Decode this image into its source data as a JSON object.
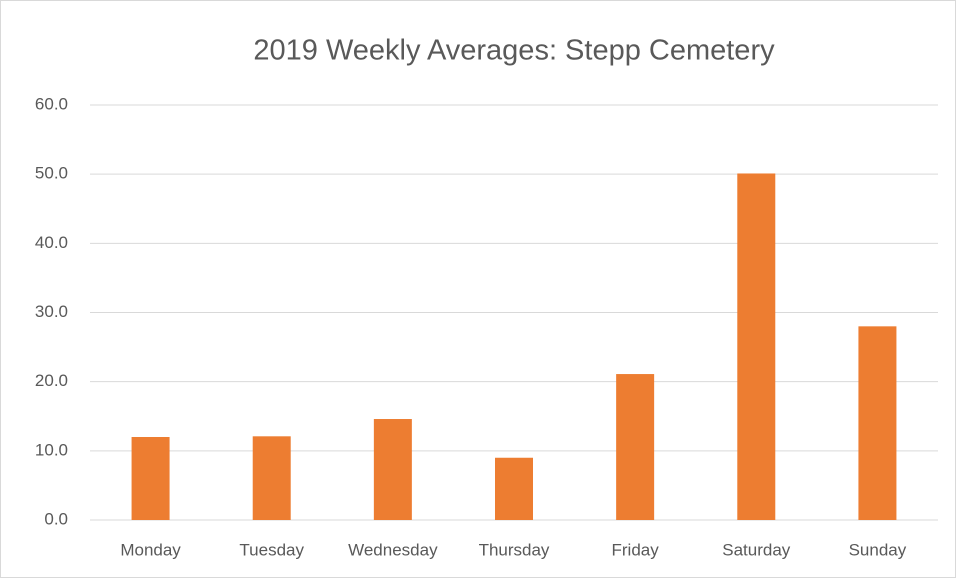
{
  "chart_data": {
    "type": "bar",
    "title": "2019 Weekly Averages: Stepp Cemetery",
    "categories": [
      "Monday",
      "Tuesday",
      "Wednesday",
      "Thursday",
      "Friday",
      "Saturday",
      "Sunday"
    ],
    "values": [
      12.0,
      12.1,
      14.6,
      9.0,
      21.1,
      50.1,
      28.0
    ],
    "color": "#ed7d31",
    "ylim": [
      0,
      60
    ],
    "yticks": [
      {
        "value": 0,
        "label": "0.0"
      },
      {
        "value": 10,
        "label": "10.0"
      },
      {
        "value": 20,
        "label": "20.0"
      },
      {
        "value": 30,
        "label": "30.0"
      },
      {
        "value": 40,
        "label": "40.0"
      },
      {
        "value": 50,
        "label": "50.0"
      },
      {
        "value": 60,
        "label": "60.0"
      }
    ],
    "grid": true
  }
}
